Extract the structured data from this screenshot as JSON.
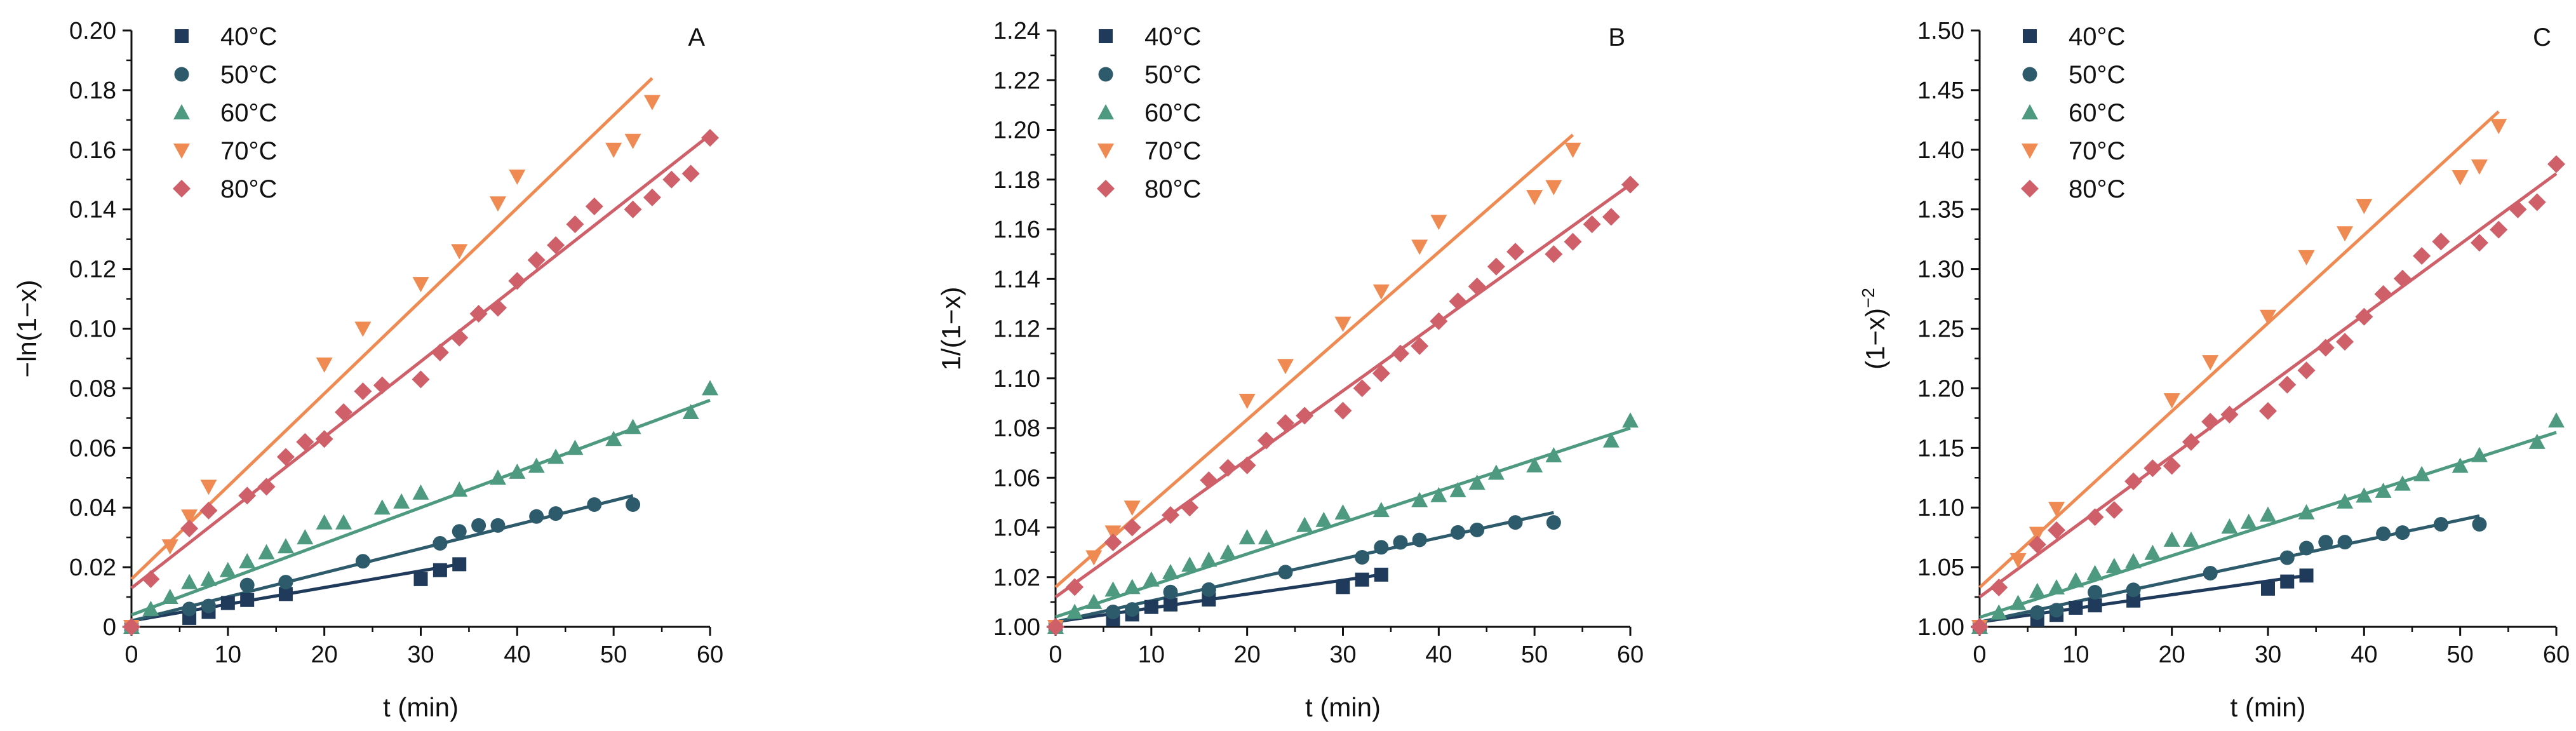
{
  "colors": {
    "40C": "#1f3a5a",
    "50C": "#2d5b6b",
    "60C": "#4e9a80",
    "70C": "#ef8a52",
    "80C": "#cf5f69",
    "axis": "#111111"
  },
  "chart_data": [
    {
      "type": "scatter",
      "panel_label": "A",
      "title": "",
      "xlabel": "t (min)",
      "ylabel": "−ln(1−x)",
      "ylabel_main": "−ln(1−x)",
      "ylabel_sup": "",
      "xlim": [
        0,
        60
      ],
      "ylim": [
        0,
        0.2
      ],
      "xticks": [
        "0",
        "10",
        "20",
        "30",
        "40",
        "50",
        "60"
      ],
      "yticks": [
        "0",
        "0.02",
        "0.04",
        "0.06",
        "0.08",
        "0.10",
        "0.12",
        "0.14",
        "0.16",
        "0.18",
        "0.20"
      ],
      "legend_position": "top-left",
      "series": [
        {
          "name": "40°C",
          "color_key": "40C",
          "marker": "square",
          "x": [
            0,
            6,
            8,
            10,
            12,
            16,
            30,
            32,
            34
          ],
          "y": [
            0.0,
            0.003,
            0.005,
            0.008,
            0.009,
            0.011,
            0.016,
            0.019,
            0.021
          ],
          "fit": [
            [
              0,
              0.002
            ],
            [
              34,
              0.021
            ]
          ]
        },
        {
          "name": "50°C",
          "color_key": "50C",
          "marker": "circle",
          "x": [
            0,
            6,
            8,
            12,
            16,
            24,
            32,
            34,
            36,
            38,
            42,
            44,
            48,
            52
          ],
          "y": [
            0.0,
            0.006,
            0.007,
            0.014,
            0.015,
            0.022,
            0.028,
            0.032,
            0.034,
            0.034,
            0.037,
            0.038,
            0.041,
            0.041
          ],
          "fit": [
            [
              0,
              0.002
            ],
            [
              52,
              0.044
            ]
          ]
        },
        {
          "name": "60°C",
          "color_key": "60C",
          "marker": "triangle-up",
          "x": [
            0,
            2,
            4,
            6,
            8,
            10,
            12,
            14,
            16,
            18,
            20,
            22,
            26,
            28,
            30,
            34,
            38,
            40,
            42,
            44,
            46,
            50,
            52,
            58,
            60
          ],
          "y": [
            0.0,
            0.006,
            0.01,
            0.015,
            0.016,
            0.019,
            0.022,
            0.025,
            0.027,
            0.03,
            0.035,
            0.035,
            0.04,
            0.042,
            0.045,
            0.046,
            0.05,
            0.052,
            0.054,
            0.057,
            0.06,
            0.063,
            0.067,
            0.072,
            0.08
          ],
          "fit": [
            [
              0,
              0.004
            ],
            [
              60,
              0.076
            ]
          ]
        },
        {
          "name": "70°C",
          "color_key": "70C",
          "marker": "triangle-down",
          "x": [
            0,
            4,
            6,
            8,
            20,
            24,
            30,
            34,
            38,
            40,
            50,
            52,
            54
          ],
          "y": [
            0.0,
            0.027,
            0.037,
            0.047,
            0.088,
            0.1,
            0.115,
            0.126,
            0.142,
            0.151,
            0.16,
            0.163,
            0.176
          ],
          "fit": [
            [
              0,
              0.016
            ],
            [
              54,
              0.184
            ]
          ]
        },
        {
          "name": "80°C",
          "color_key": "80C",
          "marker": "diamond",
          "x": [
            0,
            2,
            6,
            8,
            12,
            14,
            16,
            18,
            20,
            22,
            24,
            26,
            30,
            32,
            34,
            36,
            38,
            40,
            42,
            44,
            46,
            48,
            52,
            54,
            56,
            58,
            60
          ],
          "y": [
            0.0,
            0.016,
            0.033,
            0.039,
            0.044,
            0.047,
            0.057,
            0.062,
            0.063,
            0.072,
            0.079,
            0.081,
            0.083,
            0.092,
            0.097,
            0.105,
            0.107,
            0.116,
            0.123,
            0.128,
            0.135,
            0.141,
            0.14,
            0.144,
            0.15,
            0.152,
            0.164
          ],
          "fit": [
            [
              0,
              0.013
            ],
            [
              60,
              0.165
            ]
          ]
        }
      ]
    },
    {
      "type": "scatter",
      "panel_label": "B",
      "title": "",
      "xlabel": "t (min)",
      "ylabel": "1/(1−x)",
      "ylabel_main": "1/(1−x)",
      "ylabel_sup": "",
      "xlim": [
        0,
        60
      ],
      "ylim": [
        1.0,
        1.24
      ],
      "xticks": [
        "0",
        "10",
        "20",
        "30",
        "40",
        "50",
        "60"
      ],
      "yticks": [
        "1.00",
        "1.02",
        "1.04",
        "1.06",
        "1.08",
        "1.10",
        "1.12",
        "1.14",
        "1.16",
        "1.18",
        "1.20",
        "1.22",
        "1.24"
      ],
      "legend_position": "top-left",
      "series": [
        {
          "name": "40°C",
          "color_key": "40C",
          "marker": "square",
          "x": [
            0,
            6,
            8,
            10,
            12,
            16,
            30,
            32,
            34
          ],
          "y": [
            1.0,
            1.003,
            1.005,
            1.008,
            1.009,
            1.011,
            1.016,
            1.019,
            1.021
          ],
          "fit": [
            [
              0,
              1.002
            ],
            [
              34,
              1.021
            ]
          ]
        },
        {
          "name": "50°C",
          "color_key": "50C",
          "marker": "circle",
          "x": [
            0,
            6,
            8,
            12,
            16,
            24,
            32,
            34,
            36,
            38,
            42,
            44,
            48,
            52
          ],
          "y": [
            1.0,
            1.006,
            1.007,
            1.014,
            1.015,
            1.022,
            1.028,
            1.032,
            1.034,
            1.035,
            1.038,
            1.039,
            1.042,
            1.042
          ],
          "fit": [
            [
              0,
              1.002
            ],
            [
              52,
              1.046
            ]
          ]
        },
        {
          "name": "60°C",
          "color_key": "60C",
          "marker": "triangle-up",
          "x": [
            0,
            2,
            4,
            6,
            8,
            10,
            12,
            14,
            16,
            18,
            20,
            22,
            26,
            28,
            30,
            34,
            38,
            40,
            42,
            44,
            46,
            50,
            52,
            58,
            60
          ],
          "y": [
            1.0,
            1.006,
            1.01,
            1.015,
            1.016,
            1.019,
            1.022,
            1.025,
            1.027,
            1.03,
            1.036,
            1.036,
            1.041,
            1.043,
            1.046,
            1.047,
            1.051,
            1.053,
            1.055,
            1.058,
            1.062,
            1.065,
            1.069,
            1.075,
            1.083
          ],
          "fit": [
            [
              0,
              1.004
            ],
            [
              60,
              1.08
            ]
          ]
        },
        {
          "name": "70°C",
          "color_key": "70C",
          "marker": "triangle-down",
          "x": [
            0,
            4,
            6,
            8,
            20,
            24,
            30,
            34,
            38,
            40,
            50,
            52,
            54
          ],
          "y": [
            1.0,
            1.028,
            1.038,
            1.048,
            1.091,
            1.105,
            1.122,
            1.135,
            1.153,
            1.163,
            1.173,
            1.177,
            1.192
          ],
          "fit": [
            [
              0,
              1.016
            ],
            [
              54,
              1.198
            ]
          ]
        },
        {
          "name": "80°C",
          "color_key": "80C",
          "marker": "diamond",
          "x": [
            0,
            2,
            6,
            8,
            12,
            14,
            16,
            18,
            20,
            22,
            24,
            26,
            30,
            32,
            34,
            36,
            38,
            40,
            42,
            44,
            46,
            48,
            52,
            54,
            56,
            58,
            60
          ],
          "y": [
            1.0,
            1.016,
            1.034,
            1.04,
            1.045,
            1.048,
            1.059,
            1.064,
            1.065,
            1.075,
            1.082,
            1.085,
            1.087,
            1.096,
            1.102,
            1.11,
            1.113,
            1.123,
            1.131,
            1.137,
            1.145,
            1.151,
            1.15,
            1.155,
            1.162,
            1.165,
            1.178
          ],
          "fit": [
            [
              0,
              1.012
            ],
            [
              60,
              1.178
            ]
          ]
        }
      ]
    },
    {
      "type": "scatter",
      "panel_label": "C",
      "title": "",
      "xlabel": "t (min)",
      "ylabel": "(1−x)⁻²",
      "ylabel_main": "(1−x)",
      "ylabel_sup": "−2",
      "xlim": [
        0,
        60
      ],
      "ylim": [
        1.0,
        1.5
      ],
      "xticks": [
        "0",
        "10",
        "20",
        "30",
        "40",
        "50",
        "60"
      ],
      "yticks": [
        "1.00",
        "1.05",
        "1.10",
        "1.15",
        "1.20",
        "1.25",
        "1.30",
        "1.35",
        "1.40",
        "1.45",
        "1.50"
      ],
      "legend_position": "top-left",
      "series": [
        {
          "name": "40°C",
          "color_key": "40C",
          "marker": "square",
          "x": [
            0,
            6,
            8,
            10,
            12,
            16,
            30,
            32,
            34
          ],
          "y": [
            1.0,
            1.006,
            1.01,
            1.016,
            1.018,
            1.022,
            1.032,
            1.038,
            1.043
          ],
          "fit": [
            [
              0,
              1.004
            ],
            [
              34,
              1.043
            ]
          ]
        },
        {
          "name": "50°C",
          "color_key": "50C",
          "marker": "circle",
          "x": [
            0,
            6,
            8,
            12,
            16,
            24,
            32,
            34,
            36,
            38,
            42,
            44,
            48,
            52
          ],
          "y": [
            1.0,
            1.012,
            1.014,
            1.029,
            1.031,
            1.045,
            1.058,
            1.066,
            1.071,
            1.071,
            1.078,
            1.079,
            1.086,
            1.086
          ],
          "fit": [
            [
              0,
              1.004
            ],
            [
              52,
              1.093
            ]
          ]
        },
        {
          "name": "60°C",
          "color_key": "60C",
          "marker": "triangle-up",
          "x": [
            0,
            2,
            4,
            6,
            8,
            10,
            12,
            14,
            16,
            18,
            20,
            22,
            26,
            28,
            30,
            34,
            38,
            40,
            42,
            44,
            46,
            50,
            52,
            58,
            60
          ],
          "y": [
            1.0,
            1.012,
            1.02,
            1.03,
            1.033,
            1.039,
            1.045,
            1.051,
            1.055,
            1.062,
            1.073,
            1.073,
            1.084,
            1.088,
            1.094,
            1.096,
            1.105,
            1.11,
            1.114,
            1.12,
            1.128,
            1.135,
            1.144,
            1.155,
            1.173
          ],
          "fit": [
            [
              0,
              1.008
            ],
            [
              60,
              1.163
            ]
          ]
        },
        {
          "name": "70°C",
          "color_key": "70C",
          "marker": "triangle-down",
          "x": [
            0,
            4,
            6,
            8,
            20,
            24,
            30,
            34,
            38,
            40,
            50,
            52,
            54
          ],
          "y": [
            1.0,
            1.056,
            1.078,
            1.099,
            1.19,
            1.222,
            1.26,
            1.31,
            1.33,
            1.353,
            1.377,
            1.386,
            1.42
          ],
          "fit": [
            [
              0,
              1.033
            ],
            [
              54,
              1.432
            ]
          ]
        },
        {
          "name": "80°C",
          "color_key": "80C",
          "marker": "diamond",
          "x": [
            0,
            2,
            6,
            8,
            12,
            14,
            16,
            18,
            20,
            22,
            24,
            26,
            30,
            32,
            34,
            36,
            38,
            40,
            42,
            44,
            46,
            48,
            52,
            54,
            56,
            58,
            60
          ],
          "y": [
            1.0,
            1.033,
            1.069,
            1.081,
            1.092,
            1.098,
            1.122,
            1.133,
            1.135,
            1.155,
            1.172,
            1.178,
            1.181,
            1.203,
            1.215,
            1.234,
            1.239,
            1.26,
            1.279,
            1.292,
            1.311,
            1.323,
            1.322,
            1.333,
            1.35,
            1.356,
            1.388
          ],
          "fit": [
            [
              0,
              1.025
            ],
            [
              60,
              1.38
            ]
          ]
        }
      ]
    }
  ]
}
